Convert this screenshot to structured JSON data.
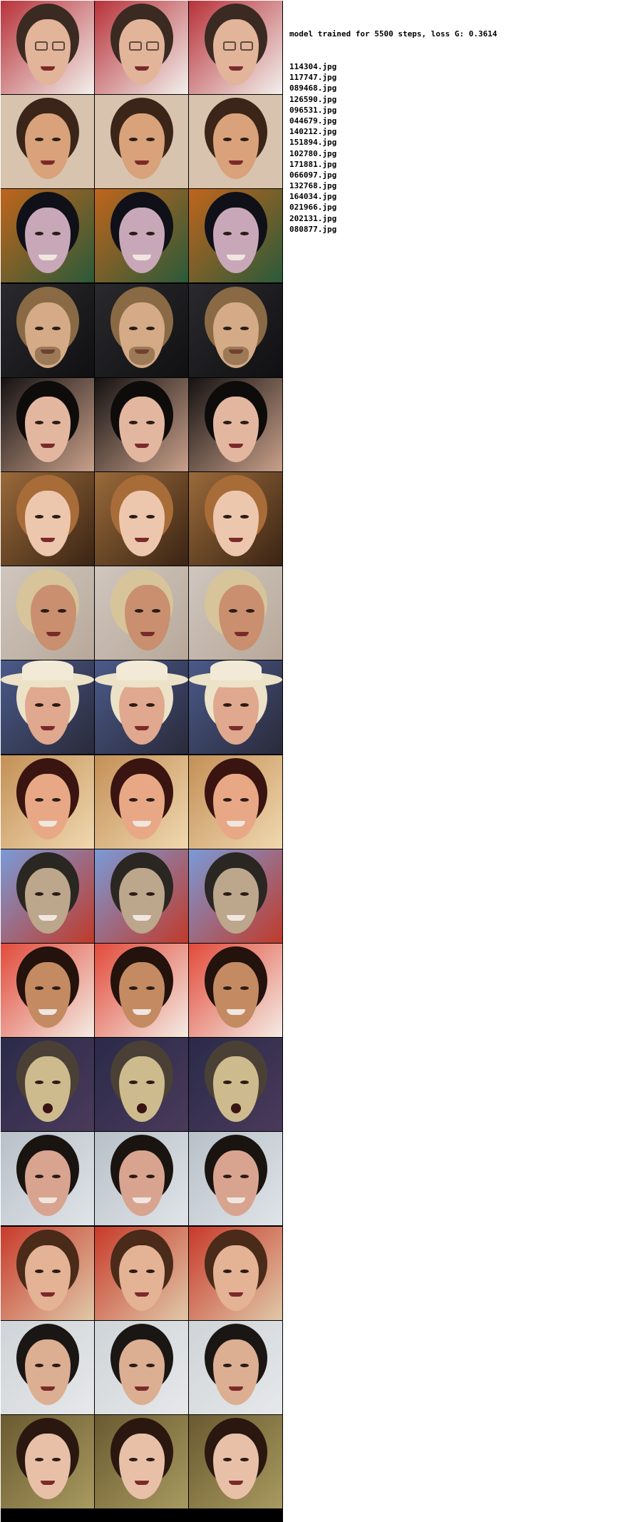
{
  "header": {
    "title": "model trained for 5500 steps, loss G: 0.3614"
  },
  "files": [
    "114304.jpg",
    "117747.jpg",
    "089468.jpg",
    "126590.jpg",
    "096531.jpg",
    "044679.jpg",
    "140212.jpg",
    "151894.jpg",
    "102780.jpg",
    "171881.jpg",
    "066097.jpg",
    "132768.jpg",
    "164034.jpg",
    "021966.jpg",
    "202131.jpg",
    "080877.jpg"
  ],
  "grid": {
    "columns": 3,
    "rows": [
      {
        "bg": "#b8323a",
        "bg2": "#f2f0ec",
        "skin": "#e2b49a",
        "hair": "#3a2a22",
        "features": "glasses"
      },
      {
        "bg": "#d8c3ae",
        "bg2": "#d8c3ae",
        "skin": "#d9a27a",
        "hair": "#3b2518",
        "features": "plain"
      },
      {
        "bg": "#c0651b",
        "bg2": "#2a5a3a",
        "skin": "#c8a8b8",
        "hair": "#101018",
        "features": "smile"
      },
      {
        "bg": "#2a2a2e",
        "bg2": "#101012",
        "skin": "#d4ab86",
        "hair": "#8a6a44",
        "features": "beard"
      },
      {
        "bg": "#151212",
        "bg2": "#c9a08a",
        "skin": "#e3b79f",
        "hair": "#0e0b0b",
        "features": "plain"
      },
      {
        "bg": "#9a6a3a",
        "bg2": "#3a2414",
        "skin": "#edc7ad",
        "hair": "#a86c38",
        "features": "plain"
      },
      {
        "bg": "#cfc6be",
        "bg2": "#b8a89a",
        "skin": "#c98f6e",
        "hair": "#d8c49a",
        "features": "side"
      },
      {
        "bg": "#4a5a8a",
        "bg2": "#2a2a3a",
        "skin": "#e0a88e",
        "hair": "#ece2c8",
        "features": "hat"
      },
      {
        "bg": "#c49056",
        "bg2": "#f0d8b0",
        "skin": "#e8a886",
        "hair": "#3a1410",
        "features": "smile"
      },
      {
        "bg": "#7a9ad8",
        "bg2": "#c03a2a",
        "skin": "#bca68c",
        "hair": "#2a2622",
        "features": "smile"
      },
      {
        "bg": "#e24a3a",
        "bg2": "#f4ece4",
        "skin": "#c48a62",
        "hair": "#24120c",
        "features": "smile"
      },
      {
        "bg": "#2a2a4a",
        "bg2": "#4a3a5a",
        "skin": "#cdbb8e",
        "hair": "#4a4036",
        "features": "open"
      },
      {
        "bg": "#b8c0c8",
        "bg2": "#dfe4e8",
        "skin": "#d8a490",
        "hair": "#1a1410",
        "features": "smile"
      },
      {
        "bg": "#c83a2a",
        "bg2": "#e0c8a8",
        "skin": "#e4b294",
        "hair": "#4a2a18",
        "features": "plain"
      },
      {
        "bg": "#cfd4d8",
        "bg2": "#e6e8ea",
        "skin": "#dcae92",
        "hair": "#1a1614",
        "features": "plain"
      },
      {
        "bg": "#6a5a30",
        "bg2": "#a89a60",
        "skin": "#e8c0a8",
        "hair": "#2a1810",
        "features": "plain"
      }
    ]
  }
}
